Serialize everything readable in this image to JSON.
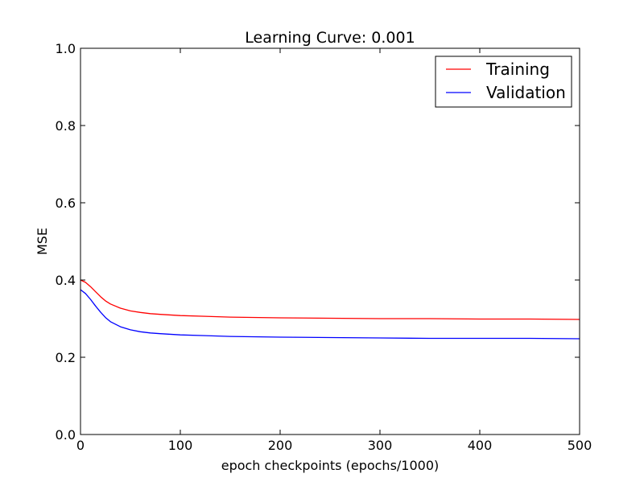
{
  "chart_data": {
    "type": "line",
    "title": "Learning Curve: 0.001",
    "xlabel": "epoch checkpoints (epochs/1000)",
    "ylabel": "MSE",
    "xlim": [
      0,
      500
    ],
    "ylim": [
      0.0,
      1.0
    ],
    "xticks": [
      0,
      100,
      200,
      300,
      400,
      500
    ],
    "xtick_labels": [
      "0",
      "100",
      "200",
      "300",
      "400",
      "500"
    ],
    "yticks": [
      0.0,
      0.2,
      0.4,
      0.6,
      0.8,
      1.0
    ],
    "ytick_labels": [
      "0.0",
      "0.2",
      "0.4",
      "0.6",
      "0.8",
      "1.0"
    ],
    "grid": false,
    "legend_position": "top-right",
    "series": [
      {
        "name": "Training",
        "color": "#ff0000",
        "x": [
          0,
          5,
          10,
          15,
          20,
          25,
          30,
          40,
          50,
          60,
          70,
          80,
          100,
          125,
          150,
          200,
          250,
          300,
          350,
          400,
          450,
          500
        ],
        "y": [
          0.4,
          0.394,
          0.383,
          0.37,
          0.357,
          0.346,
          0.338,
          0.327,
          0.32,
          0.316,
          0.313,
          0.311,
          0.308,
          0.306,
          0.304,
          0.302,
          0.301,
          0.3,
          0.3,
          0.299,
          0.299,
          0.298
        ]
      },
      {
        "name": "Validation",
        "color": "#0000ff",
        "x": [
          0,
          5,
          10,
          15,
          20,
          25,
          30,
          40,
          50,
          60,
          70,
          80,
          100,
          125,
          150,
          200,
          250,
          300,
          350,
          400,
          450,
          500
        ],
        "y": [
          0.375,
          0.365,
          0.35,
          0.333,
          0.317,
          0.303,
          0.292,
          0.279,
          0.271,
          0.266,
          0.263,
          0.261,
          0.258,
          0.256,
          0.254,
          0.252,
          0.251,
          0.25,
          0.249,
          0.249,
          0.249,
          0.248
        ]
      }
    ]
  }
}
